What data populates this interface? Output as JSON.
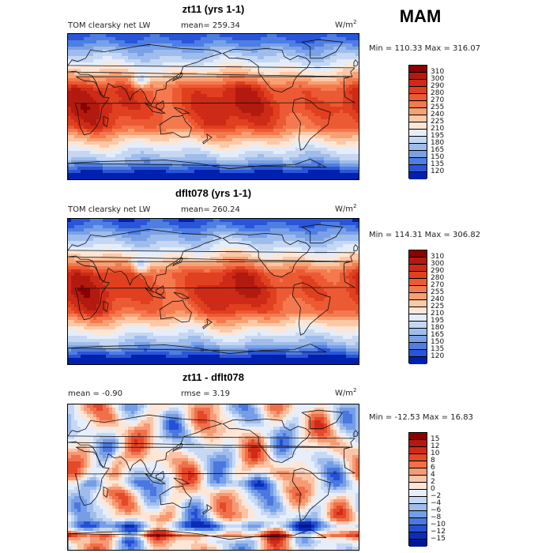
{
  "season": "MAM",
  "panels": [
    {
      "id": "p1",
      "title": "zt11 (yrs 1-1)",
      "variable": "TOM clearsky net LW",
      "stat_left": "",
      "stat_text": "mean= 259.34",
      "units": "W/m",
      "units_sup": "2",
      "minmax": "Min = 110.33 Max = 316.07",
      "colorbar": {
        "labels": [
          "310",
          "300",
          "290",
          "280",
          "270",
          "255",
          "240",
          "225",
          "210",
          "195",
          "180",
          "165",
          "150",
          "135",
          "120"
        ],
        "colors": [
          "#8b0000",
          "#b21a10",
          "#cd2a17",
          "#e0401f",
          "#ec5a33",
          "#f4794f",
          "#f9a072",
          "#fcc8a5",
          "#fde6d6",
          "#e4edfa",
          "#c5d7f3",
          "#9fbdec",
          "#7aa1e6",
          "#4f7ee3",
          "#2a55d8",
          "#0020b0"
        ]
      },
      "field": "abs"
    },
    {
      "id": "p2",
      "title": "dflt078 (yrs 1-1)",
      "variable": "TOM clearsky net LW",
      "stat_left": "",
      "stat_text": "mean= 260.24",
      "units": "W/m",
      "units_sup": "2",
      "minmax": "Min = 114.31 Max = 306.82",
      "colorbar": {
        "labels": [
          "310",
          "300",
          "290",
          "280",
          "270",
          "255",
          "240",
          "225",
          "210",
          "195",
          "180",
          "165",
          "150",
          "135",
          "120"
        ],
        "colors": [
          "#8b0000",
          "#b21a10",
          "#cd2a17",
          "#e0401f",
          "#ec5a33",
          "#f4794f",
          "#f9a072",
          "#fcc8a5",
          "#fde6d6",
          "#e4edfa",
          "#c5d7f3",
          "#9fbdec",
          "#7aa1e6",
          "#4f7ee3",
          "#2a55d8",
          "#0020b0"
        ]
      },
      "field": "abs"
    },
    {
      "id": "p3",
      "title": "zt11 - dflt078",
      "variable": "",
      "stat_left": "mean =   -0.90",
      "stat_text": "rmse =    3.19",
      "units": "W/m",
      "units_sup": "2",
      "minmax": "Min = -12.53 Max =   16.83",
      "colorbar": {
        "labels": [
          "15",
          "12",
          "10",
          "8",
          "6",
          "4",
          "2",
          "0",
          "−2",
          "−4",
          "−6",
          "−8",
          "−10",
          "−12",
          "−15"
        ],
        "colors": [
          "#8b0000",
          "#b21a10",
          "#d12a18",
          "#e4492a",
          "#f0704a",
          "#f69a74",
          "#fbc4a5",
          "#fde6d8",
          "#e6eefb",
          "#c6d8f4",
          "#9fbdec",
          "#759ee6",
          "#4a78e0",
          "#2450d6",
          "#0a2db8",
          "#001890"
        ]
      },
      "field": "diff"
    }
  ]
}
